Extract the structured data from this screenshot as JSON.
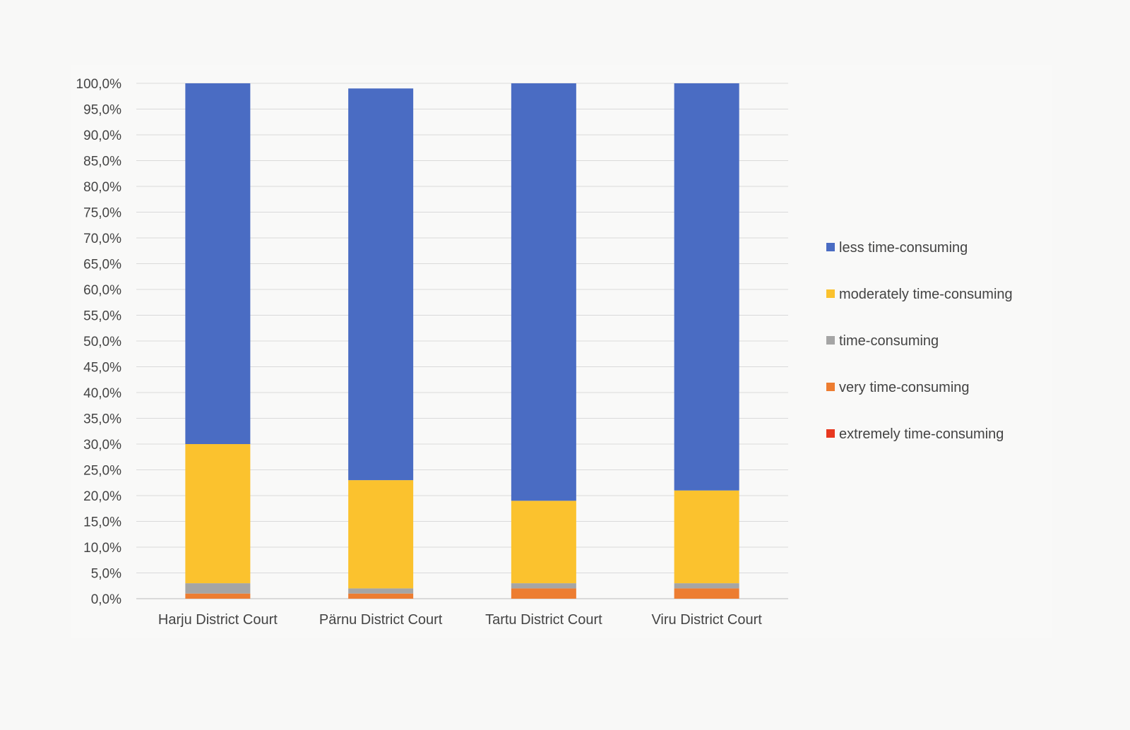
{
  "chart_data": {
    "type": "bar",
    "stacked": true,
    "title": "",
    "xlabel": "",
    "ylabel": "",
    "categories": [
      "Harju District Court",
      "Pärnu District Court",
      "Tartu District Court",
      "Viru District Court"
    ],
    "ylim": [
      0,
      100
    ],
    "y_ticks": [
      "0,0%",
      "5,0%",
      "10,0%",
      "15,0%",
      "20,0%",
      "25,0%",
      "30,0%",
      "35,0%",
      "40,0%",
      "45,0%",
      "50,0%",
      "55,0%",
      "60,0%",
      "65,0%",
      "70,0%",
      "75,0%",
      "80,0%",
      "85,0%",
      "90,0%",
      "95,0%",
      "100,0%"
    ],
    "grid": true,
    "legend_position": "right",
    "series": [
      {
        "name": "extremely time-consuming",
        "color": "#e8381f",
        "values": [
          0,
          0,
          0,
          0
        ]
      },
      {
        "name": "very time-consuming",
        "color": "#ed7d31",
        "values": [
          1,
          1,
          2,
          2
        ]
      },
      {
        "name": "time-consuming",
        "color": "#a5a5a5",
        "values": [
          2,
          1,
          1,
          1
        ]
      },
      {
        "name": "moderately time-consuming",
        "color": "#fbc22e",
        "values": [
          27,
          21,
          16,
          18
        ]
      },
      {
        "name": "less time-consuming",
        "color": "#4a6cc3",
        "values": [
          70,
          76,
          81,
          79
        ]
      }
    ],
    "legend_order": [
      "less time-consuming",
      "moderately time-consuming",
      "time-consuming",
      "very time-consuming",
      "extremely time-consuming"
    ]
  }
}
